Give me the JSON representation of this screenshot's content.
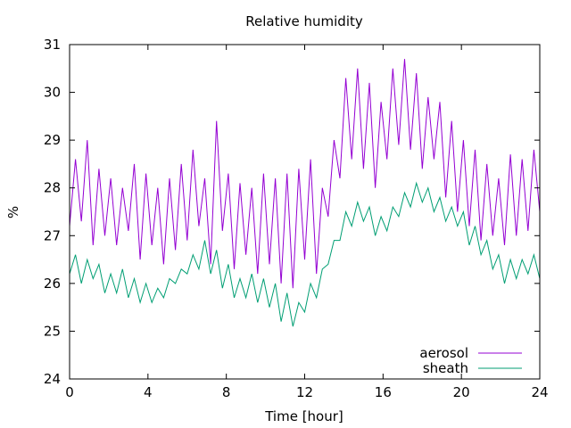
{
  "chart_data": {
    "type": "line",
    "title": "Relative humidity",
    "xlabel": "Time [hour]",
    "ylabel": "%",
    "xlim": [
      0,
      24
    ],
    "ylim": [
      24,
      31
    ],
    "xticks": [
      0,
      4,
      8,
      12,
      16,
      20,
      24
    ],
    "yticks": [
      24,
      25,
      26,
      27,
      28,
      29,
      30,
      31
    ],
    "grid": false,
    "legend_position": "bottom-right",
    "series": [
      {
        "name": "aerosol",
        "color": "#9400d3",
        "x": [
          0,
          0.3,
          0.6,
          0.9,
          1.2,
          1.5,
          1.8,
          2.1,
          2.4,
          2.7,
          3.0,
          3.3,
          3.6,
          3.9,
          4.2,
          4.5,
          4.8,
          5.1,
          5.4,
          5.7,
          6.0,
          6.3,
          6.6,
          6.9,
          7.2,
          7.5,
          7.8,
          8.1,
          8.4,
          8.7,
          9.0,
          9.3,
          9.6,
          9.9,
          10.2,
          10.5,
          10.8,
          11.1,
          11.4,
          11.7,
          12.0,
          12.3,
          12.6,
          12.9,
          13.2,
          13.5,
          13.8,
          14.1,
          14.4,
          14.7,
          15.0,
          15.3,
          15.6,
          15.9,
          16.2,
          16.5,
          16.8,
          17.1,
          17.4,
          17.7,
          18.0,
          18.3,
          18.6,
          18.9,
          19.2,
          19.5,
          19.8,
          20.1,
          20.4,
          20.7,
          21.0,
          21.3,
          21.6,
          21.9,
          22.2,
          22.5,
          22.8,
          23.1,
          23.4,
          23.7,
          24.0
        ],
        "values": [
          27.2,
          28.6,
          27.3,
          29.0,
          26.8,
          28.4,
          27.0,
          28.2,
          26.8,
          28.0,
          27.1,
          28.5,
          26.5,
          28.3,
          26.8,
          28.0,
          26.4,
          28.2,
          26.7,
          28.5,
          26.9,
          28.8,
          27.2,
          28.2,
          26.4,
          29.4,
          27.1,
          28.3,
          26.3,
          28.1,
          26.6,
          28.0,
          26.2,
          28.3,
          26.4,
          28.2,
          26.0,
          28.3,
          25.9,
          28.4,
          26.5,
          28.6,
          26.2,
          28.0,
          27.4,
          29.0,
          28.2,
          30.3,
          28.6,
          30.5,
          28.4,
          30.2,
          28.0,
          29.8,
          28.6,
          30.5,
          28.9,
          30.7,
          28.8,
          30.4,
          28.4,
          29.9,
          28.6,
          29.8,
          27.8,
          29.4,
          27.5,
          29.0,
          27.2,
          28.8,
          26.9,
          28.5,
          27.0,
          28.2,
          26.8,
          28.7,
          27.0,
          28.6,
          27.1,
          28.8,
          27.5
        ]
      },
      {
        "name": "sheath",
        "color": "#009e73",
        "x": [
          0,
          0.3,
          0.6,
          0.9,
          1.2,
          1.5,
          1.8,
          2.1,
          2.4,
          2.7,
          3.0,
          3.3,
          3.6,
          3.9,
          4.2,
          4.5,
          4.8,
          5.1,
          5.4,
          5.7,
          6.0,
          6.3,
          6.6,
          6.9,
          7.2,
          7.5,
          7.8,
          8.1,
          8.4,
          8.7,
          9.0,
          9.3,
          9.6,
          9.9,
          10.2,
          10.5,
          10.8,
          11.1,
          11.4,
          11.7,
          12.0,
          12.3,
          12.6,
          12.9,
          13.2,
          13.5,
          13.8,
          14.1,
          14.4,
          14.7,
          15.0,
          15.3,
          15.6,
          15.9,
          16.2,
          16.5,
          16.8,
          17.1,
          17.4,
          17.7,
          18.0,
          18.3,
          18.6,
          18.9,
          19.2,
          19.5,
          19.8,
          20.1,
          20.4,
          20.7,
          21.0,
          21.3,
          21.6,
          21.9,
          22.2,
          22.5,
          22.8,
          23.1,
          23.4,
          23.7,
          24.0
        ],
        "values": [
          26.2,
          26.6,
          26.0,
          26.5,
          26.1,
          26.4,
          25.8,
          26.2,
          25.8,
          26.3,
          25.7,
          26.1,
          25.6,
          26.0,
          25.6,
          25.9,
          25.7,
          26.1,
          26.0,
          26.3,
          26.2,
          26.6,
          26.3,
          26.9,
          26.2,
          26.7,
          25.9,
          26.4,
          25.7,
          26.1,
          25.7,
          26.2,
          25.6,
          26.1,
          25.5,
          26.0,
          25.2,
          25.8,
          25.1,
          25.6,
          25.4,
          26.0,
          25.7,
          26.3,
          26.4,
          26.9,
          26.9,
          27.5,
          27.2,
          27.7,
          27.3,
          27.6,
          27.0,
          27.4,
          27.1,
          27.6,
          27.4,
          27.9,
          27.6,
          28.1,
          27.7,
          28.0,
          27.5,
          27.8,
          27.3,
          27.6,
          27.2,
          27.5,
          26.8,
          27.2,
          26.6,
          26.9,
          26.3,
          26.6,
          26.0,
          26.5,
          26.1,
          26.5,
          26.2,
          26.6,
          26.1
        ]
      }
    ]
  }
}
